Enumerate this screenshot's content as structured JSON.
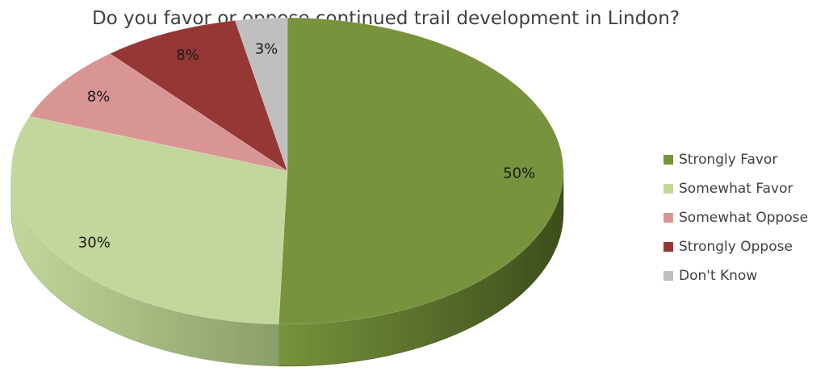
{
  "chart_data": {
    "type": "pie",
    "title": "Do you favor or oppose continued trail development in Lindon?",
    "slices": [
      {
        "label": "Strongly Favor",
        "value": 50,
        "display": "50%",
        "color": "#77933c",
        "side": "#3d4d1c"
      },
      {
        "label": "Somewhat Favor",
        "value": 30,
        "display": "30%",
        "color": "#c3d69b",
        "side": "#8a9e68"
      },
      {
        "label": "Somewhat Oppose",
        "value": 8,
        "display": "8%",
        "color": "#d99594",
        "side": "#a06a69"
      },
      {
        "label": "Strongly Oppose",
        "value": 8,
        "display": "8%",
        "color": "#953735",
        "side": "#5e2120"
      },
      {
        "label": "Don't Know",
        "value": 3,
        "display": "3%",
        "color": "#bfbfbf",
        "side": "#8c8c8c"
      }
    ],
    "legend_position": "right"
  }
}
